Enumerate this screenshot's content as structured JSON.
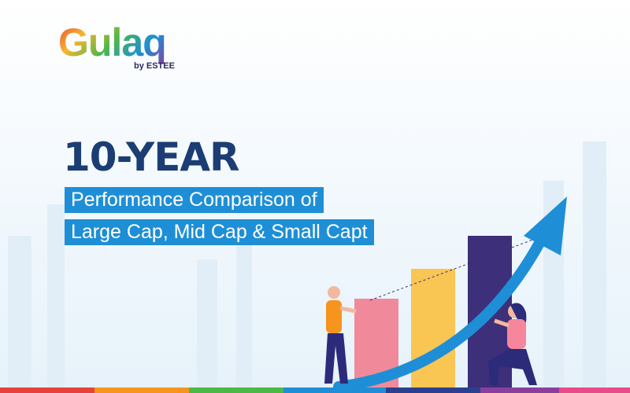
{
  "logo": {
    "name": "Gulaq",
    "tagline": "by ESTEE"
  },
  "headline": "10-YEAR",
  "subtitle_lines": [
    "Performance Comparison of",
    "Large Cap, Mid Cap & Small Capt"
  ]
}
